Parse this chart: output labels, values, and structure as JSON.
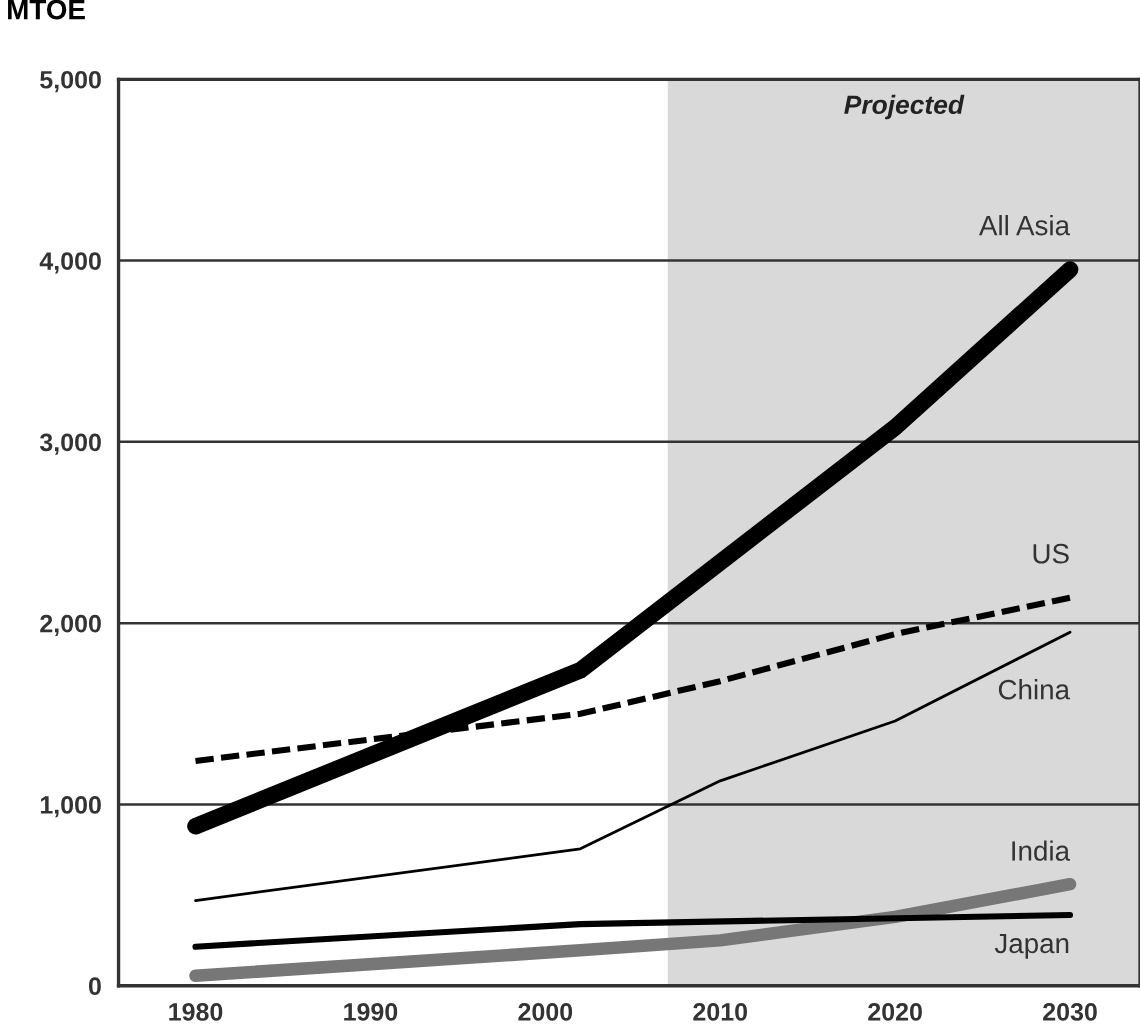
{
  "chart_data": {
    "type": "line",
    "ylabel": "MTOE",
    "series": [
      {
        "name": "All Asia",
        "color": "#000000",
        "x": [
          1980,
          2002,
          2020,
          2030
        ],
        "values": [
          880,
          1740,
          3080,
          3950
        ]
      },
      {
        "name": "US",
        "color": "#000000",
        "line_style": "dashed",
        "x": [
          1980,
          2002,
          2010,
          2020,
          2030
        ],
        "values": [
          1240,
          1500,
          1680,
          1940,
          2140
        ]
      },
      {
        "name": "China",
        "color": "#000000",
        "x": [
          1980,
          2002,
          2010,
          2020,
          2030
        ],
        "values": [
          470,
          755,
          1130,
          1460,
          1950
        ]
      },
      {
        "name": "India",
        "color": "#777777",
        "x": [
          1980,
          2002,
          2010,
          2020,
          2030
        ],
        "values": [
          55,
          195,
          250,
          380,
          560
        ]
      },
      {
        "name": "Japan",
        "color": "#000000",
        "x": [
          1980,
          2002,
          2030
        ],
        "values": [
          215,
          340,
          390
        ]
      }
    ],
    "bands": [
      {
        "axis": "x",
        "from": 2007,
        "to": 2034,
        "label": "Projected",
        "color": "#d9d9d9"
      }
    ],
    "xlim": [
      1975.6,
      2034
    ],
    "xticks": [
      1980,
      1990,
      2000,
      2010,
      2020,
      2030
    ],
    "ylim": [
      0,
      5000
    ],
    "yticks": [
      {
        "value": 0,
        "label": "0"
      },
      {
        "value": 1000,
        "label": "1,000"
      },
      {
        "value": 2000,
        "label": "2,000"
      },
      {
        "value": 3000,
        "label": "3,000"
      },
      {
        "value": 4000,
        "label": "4,000"
      },
      {
        "value": 5000,
        "label": "5,000"
      }
    ],
    "grid": "y",
    "legend": false,
    "marker": "none"
  }
}
